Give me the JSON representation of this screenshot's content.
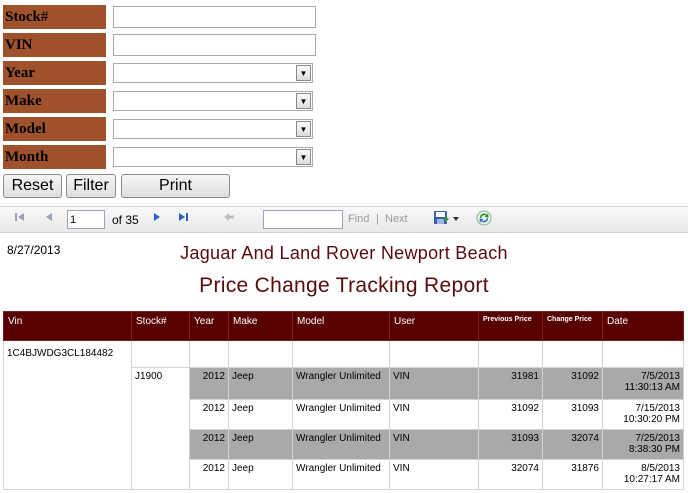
{
  "filters": {
    "stock_label": "Stock#",
    "vin_label": "VIN",
    "year_label": "Year",
    "make_label": "Make",
    "model_label": "Model",
    "month_label": "Month",
    "stock_value": "",
    "vin_value": "",
    "year_value": "",
    "make_value": "",
    "model_value": "",
    "month_value": ""
  },
  "buttons": {
    "reset": "Reset",
    "filter": "Filter",
    "print": "Print"
  },
  "toolbar": {
    "page_value": "1",
    "of_pages": "of 35",
    "find_value": "",
    "find_label": "Find",
    "separator": "|",
    "next_label": "Next",
    "icons": [
      "first-page-icon",
      "previous-page-icon",
      "next-page-icon",
      "last-page-icon",
      "back-icon",
      "export-icon",
      "refresh-icon"
    ]
  },
  "report": {
    "date": "8/27/2013",
    "title": "Jaguar And Land Rover Newport Beach",
    "subtitle": "Price Change Tracking Report",
    "columns": [
      "Vin",
      "Stock#",
      "Year",
      "Make",
      "Model",
      "User",
      "Previous Price",
      "Change Price",
      "Date"
    ],
    "vin": "1C4BJWDG3CL184482",
    "stock": "J1900",
    "rows": [
      {
        "year": "2012",
        "make": "Jeep",
        "model": "Wrangler Unlimited",
        "user": "VIN",
        "prev": "31981",
        "change": "31092",
        "date1": "7/5/2013",
        "date2": "11:30:13 AM"
      },
      {
        "year": "2012",
        "make": "Jeep",
        "model": "Wrangler Unlimited",
        "user": "VIN",
        "prev": "31092",
        "change": "31093",
        "date1": "7/15/2013",
        "date2": "10:30:20 PM"
      },
      {
        "year": "2012",
        "make": "Jeep",
        "model": "Wrangler Unlimited",
        "user": "VIN",
        "prev": "31093",
        "change": "32074",
        "date1": "7/25/2013",
        "date2": "8:38:30 PM"
      },
      {
        "year": "2012",
        "make": "Jeep",
        "model": "Wrangler Unlimited",
        "user": "VIN",
        "prev": "32074",
        "change": "31876",
        "date1": "8/5/2013",
        "date2": "10:27:17 AM"
      }
    ]
  },
  "colors": {
    "label_bg": "#a0522d",
    "header_bg": "#580000",
    "title": "#5a0a0a",
    "row_shade": "#a9a9a9"
  }
}
